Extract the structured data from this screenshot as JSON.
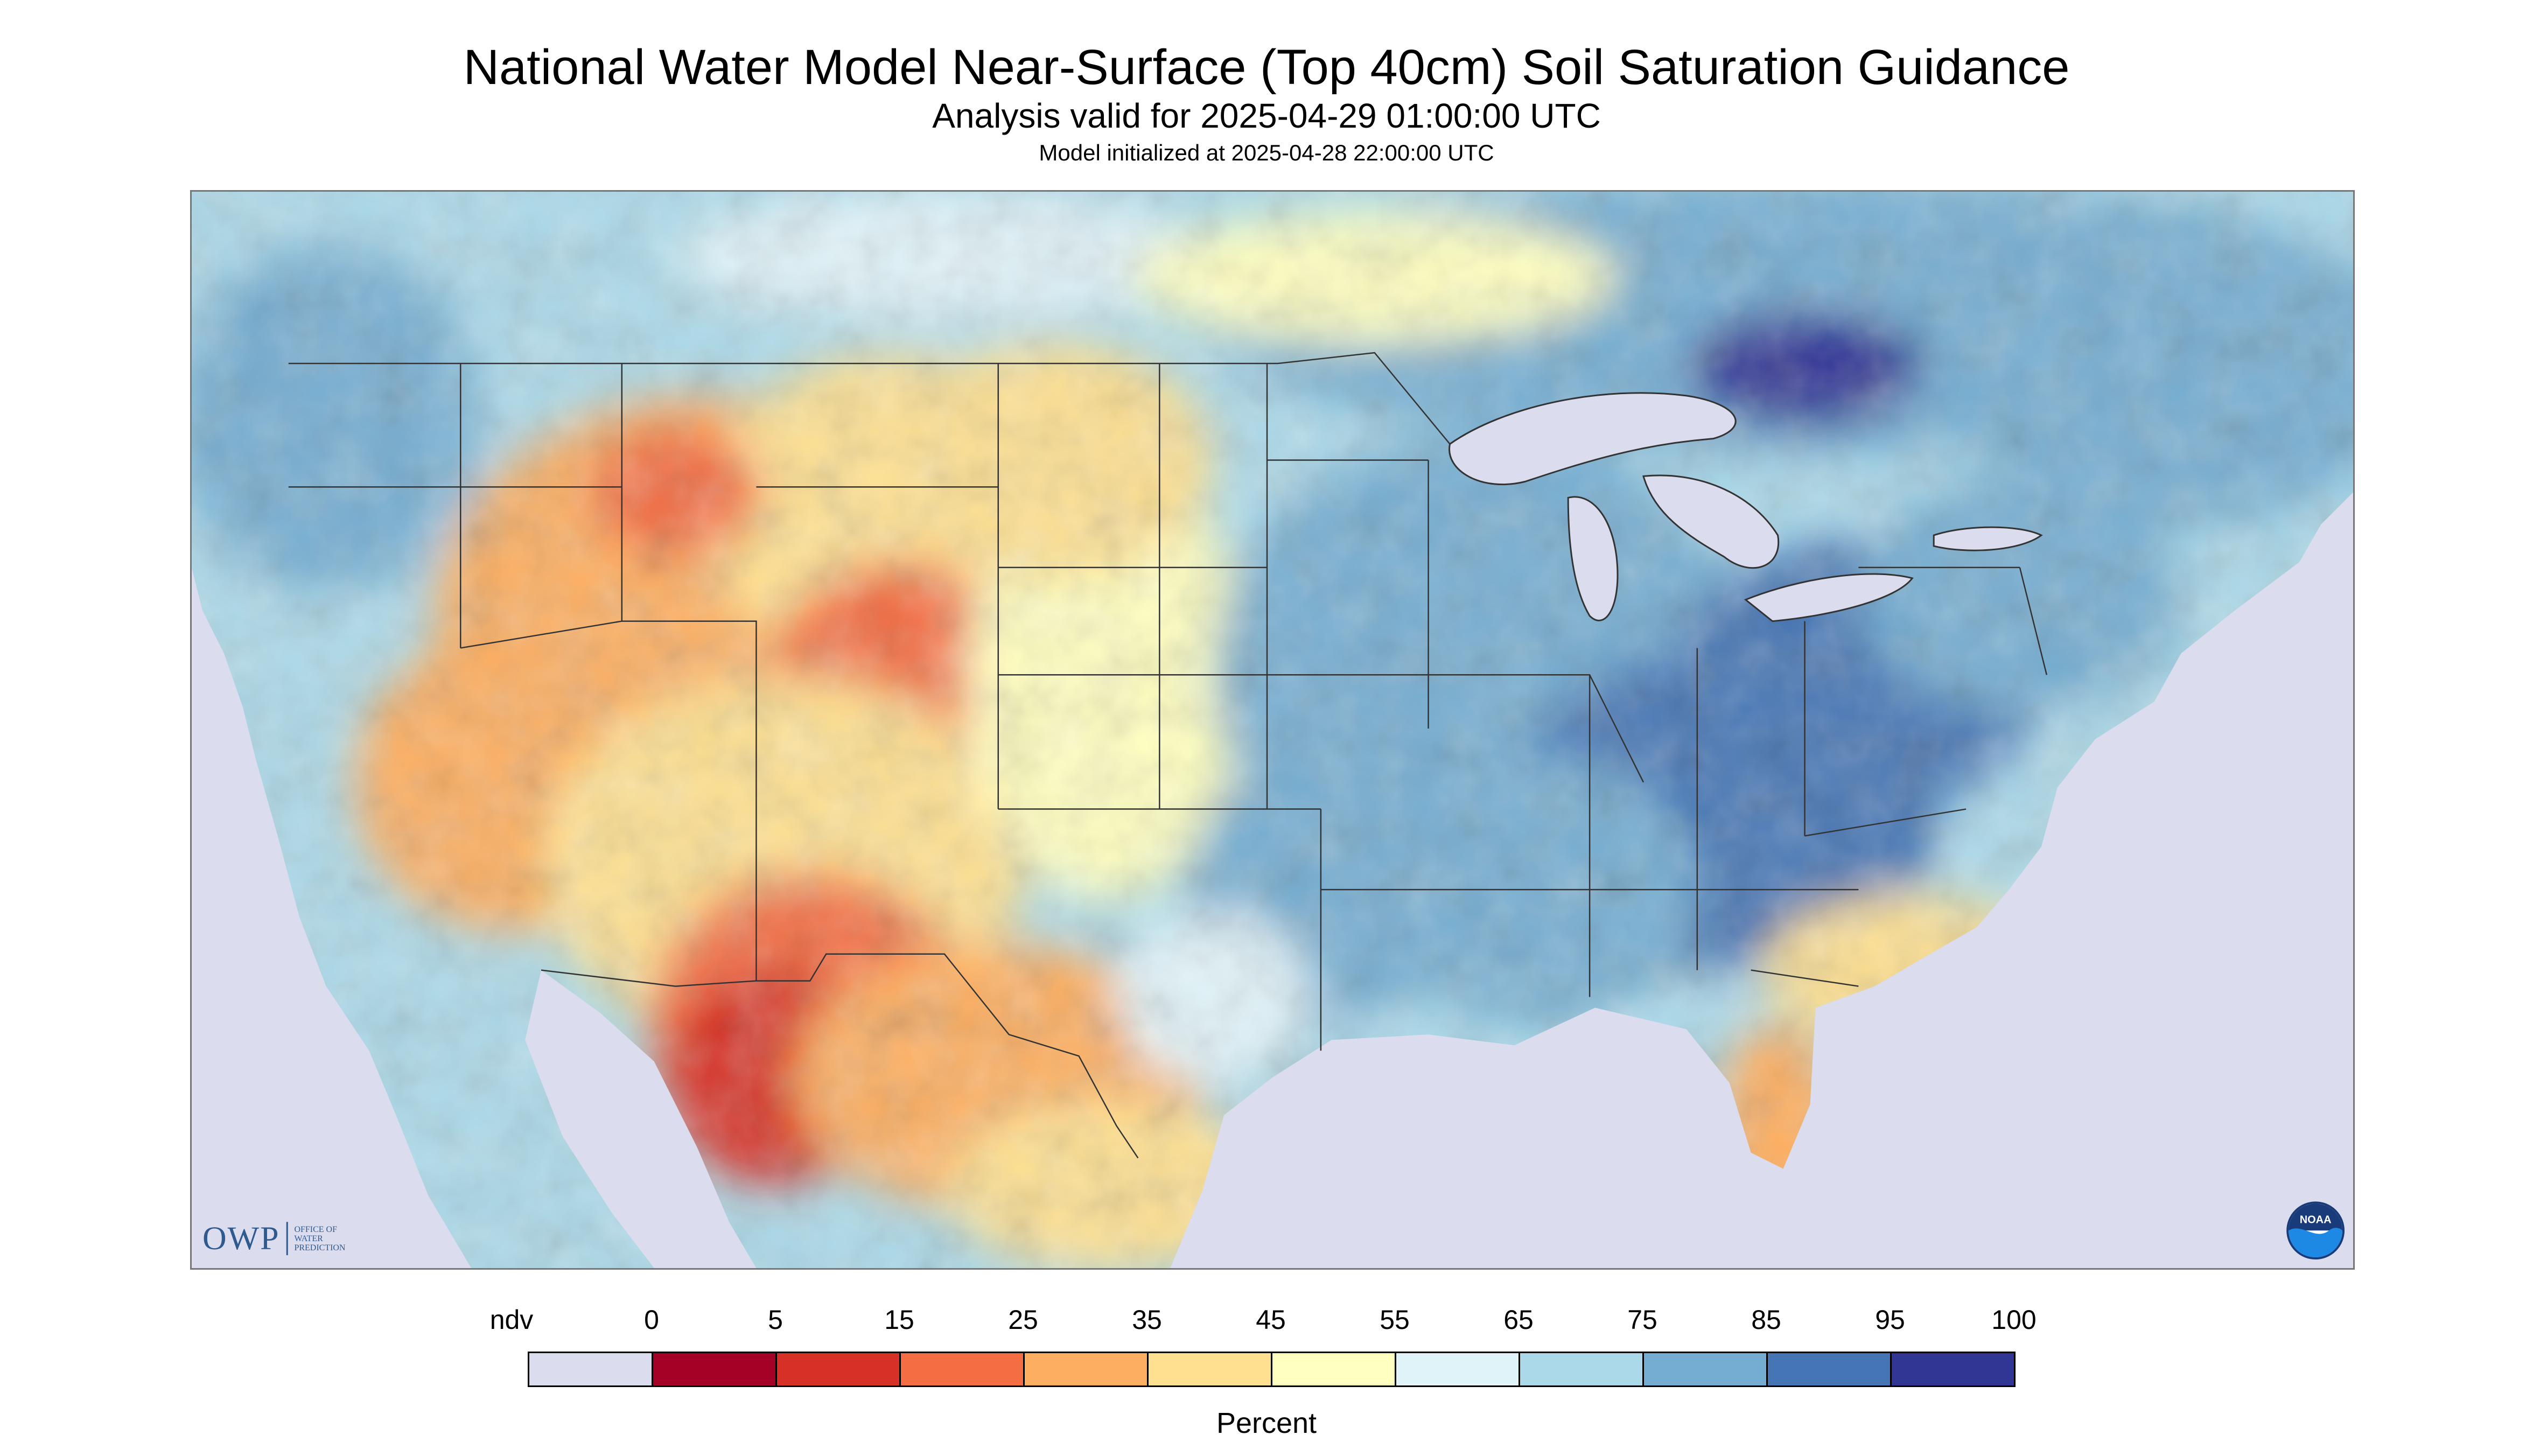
{
  "header": {
    "title": "National Water Model Near-Surface (Top 40cm) Soil Saturation Guidance",
    "subtitle": "Analysis valid for 2025-04-29 01:00:00 UTC",
    "initialized": "Model initialized at 2025-04-28 22:00:00 UTC"
  },
  "logos": {
    "owp_abbrev": "OWP",
    "owp_line1": "OFFICE OF",
    "owp_line2": "WATER",
    "owp_line3": "PREDICTION",
    "noaa_text": "NOAA"
  },
  "map": {
    "region": "Contiguous United States with southern Canada and northern Mexico",
    "background_ndv_color": "#dcdcef",
    "water_color": "#dcdcef",
    "border_color": "#333333"
  },
  "legend": {
    "unit": "Percent",
    "labels": [
      "ndv",
      "0",
      "5",
      "15",
      "25",
      "35",
      "45",
      "55",
      "65",
      "75",
      "85",
      "95",
      "100"
    ],
    "colors": [
      "#dcdcef",
      "#a50026",
      "#d73027",
      "#f46d43",
      "#fdae61",
      "#fee090",
      "#ffffbf",
      "#e0f3f8",
      "#abd9e9",
      "#74add1",
      "#4575b4",
      "#313695"
    ]
  }
}
